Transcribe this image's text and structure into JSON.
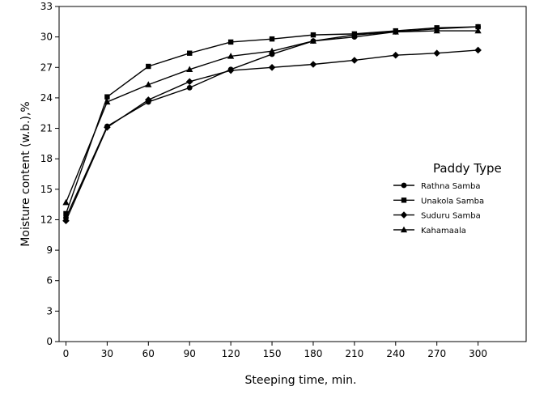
{
  "chart_data": {
    "type": "line",
    "xlabel": "Steeping time, min.",
    "ylabel": "Moisture content (w.b.),%",
    "x": [
      0,
      30,
      60,
      90,
      120,
      150,
      180,
      210,
      240,
      270,
      300
    ],
    "xticks": [
      0,
      30,
      60,
      90,
      120,
      150,
      180,
      210,
      240,
      270,
      300
    ],
    "yticks": [
      0,
      3,
      6,
      9,
      12,
      15,
      18,
      21,
      24,
      27,
      30,
      33
    ],
    "xlim": [
      -5,
      335
    ],
    "ylim": [
      0,
      33
    ],
    "grid": false,
    "legend": {
      "title": "Paddy Type",
      "position": "right"
    },
    "series": [
      {
        "name": "Rathna Samba",
        "marker": "circle",
        "values": [
          12.2,
          21.2,
          23.6,
          25.0,
          26.8,
          28.3,
          29.6,
          30.0,
          30.5,
          30.8,
          31.0
        ]
      },
      {
        "name": "Unakola Samba",
        "marker": "square",
        "values": [
          12.6,
          24.1,
          27.1,
          28.4,
          29.5,
          29.8,
          30.2,
          30.3,
          30.6,
          30.9,
          31.0
        ]
      },
      {
        "name": "Suduru Samba",
        "marker": "diamond",
        "values": [
          11.9,
          21.1,
          23.8,
          25.6,
          26.7,
          27.0,
          27.3,
          27.7,
          28.2,
          28.4,
          28.7
        ]
      },
      {
        "name": "Kahamaala",
        "marker": "triangle",
        "values": [
          13.7,
          23.6,
          25.3,
          26.8,
          28.1,
          28.6,
          29.6,
          30.2,
          30.5,
          30.6,
          30.6
        ]
      }
    ]
  }
}
